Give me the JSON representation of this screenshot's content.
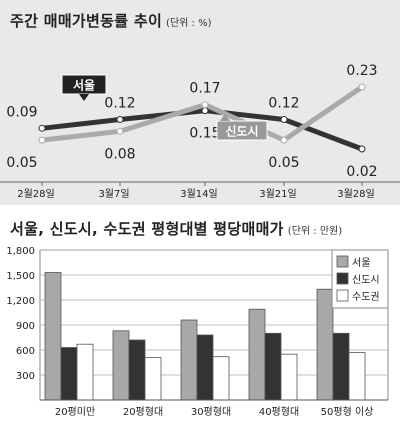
{
  "chart_data": [
    {
      "type": "line",
      "title": "주간 매매가변동률 추이",
      "unit": "(단위 : %)",
      "categories": [
        "2월28일",
        "3월7일",
        "3월14일",
        "3월21일",
        "3월28일"
      ],
      "series": [
        {
          "name": "서울",
          "values": [
            0.09,
            0.12,
            0.15,
            0.12,
            0.02
          ],
          "color": "#333333"
        },
        {
          "name": "신도시",
          "values": [
            0.05,
            0.08,
            0.17,
            0.05,
            0.23
          ],
          "color": "#aaaaaa"
        }
      ],
      "value_labels": {
        "서울": [
          "0.09",
          "0.12",
          "0.15",
          "0.12",
          "0.02"
        ],
        "신도시": [
          "0.05",
          "0.08",
          "0.17",
          "0.05",
          "0.23"
        ]
      },
      "grid": false
    },
    {
      "type": "bar",
      "title": "서울, 신도시, 수도권 평형대별 평당매매가",
      "unit": "(단위 : 만원)",
      "categories": [
        "20평미만",
        "20평형대",
        "30평형대",
        "40평형대",
        "50평형 이상"
      ],
      "series": [
        {
          "name": "서울",
          "values": [
            1530,
            830,
            960,
            1090,
            1330
          ],
          "color": "#a8a8a8"
        },
        {
          "name": "신도시",
          "values": [
            630,
            720,
            780,
            800,
            800
          ],
          "color": "#333333"
        },
        {
          "name": "수도권",
          "values": [
            670,
            510,
            520,
            550,
            570
          ],
          "color": "#ffffff"
        }
      ],
      "y_ticks": [
        "300",
        "600",
        "900",
        "1,200",
        "1,500",
        "1,800"
      ],
      "ylim": [
        0,
        1800
      ],
      "legend_position": "top-right",
      "grid": true
    }
  ]
}
